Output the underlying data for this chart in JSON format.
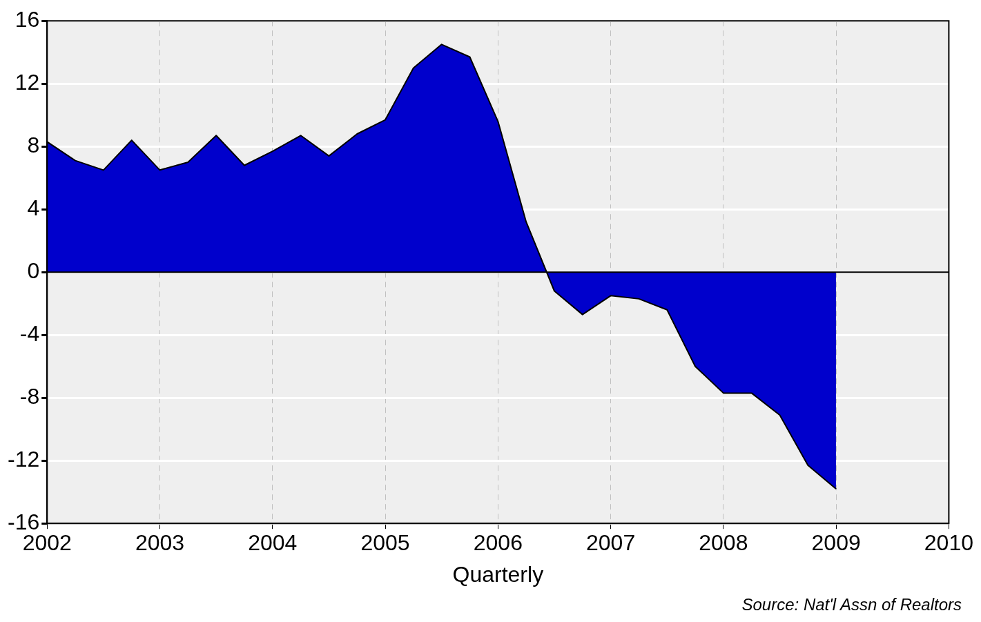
{
  "chart_data": {
    "type": "area",
    "xlabel": "Quarterly",
    "x": [
      2002,
      2002.25,
      2002.5,
      2002.75,
      2003,
      2003.25,
      2003.5,
      2003.75,
      2004,
      2004.25,
      2004.5,
      2004.75,
      2005,
      2005.25,
      2005.5,
      2005.75,
      2006,
      2006.25,
      2006.5,
      2006.75,
      2007,
      2007.25,
      2007.5,
      2007.75,
      2008,
      2008.25,
      2008.5,
      2008.75,
      2009
    ],
    "series": [
      {
        "color": "#0000cc",
        "values": [
          8.3,
          7.1,
          6.5,
          8.4,
          6.5,
          7.0,
          8.7,
          6.8,
          7.7,
          8.7,
          7.4,
          8.8,
          9.7,
          13.0,
          14.5,
          13.7,
          9.6,
          3.2,
          -1.2,
          -2.7,
          -1.5,
          -1.7,
          -2.4,
          -6.0,
          -7.7,
          -7.7,
          -9.1,
          -12.3,
          -13.8
        ]
      }
    ],
    "xlim": [
      2002,
      2010
    ],
    "xticks": [
      2002,
      2003,
      2004,
      2005,
      2006,
      2007,
      2008,
      2009,
      2010
    ],
    "ylim": [
      -16,
      16
    ],
    "yticks": [
      -16,
      -12,
      -8,
      -4,
      0,
      4,
      8,
      12,
      16
    ],
    "grid": true,
    "legend": false,
    "annotations": [
      "Source: Nat'l Assn of Realtors"
    ]
  }
}
